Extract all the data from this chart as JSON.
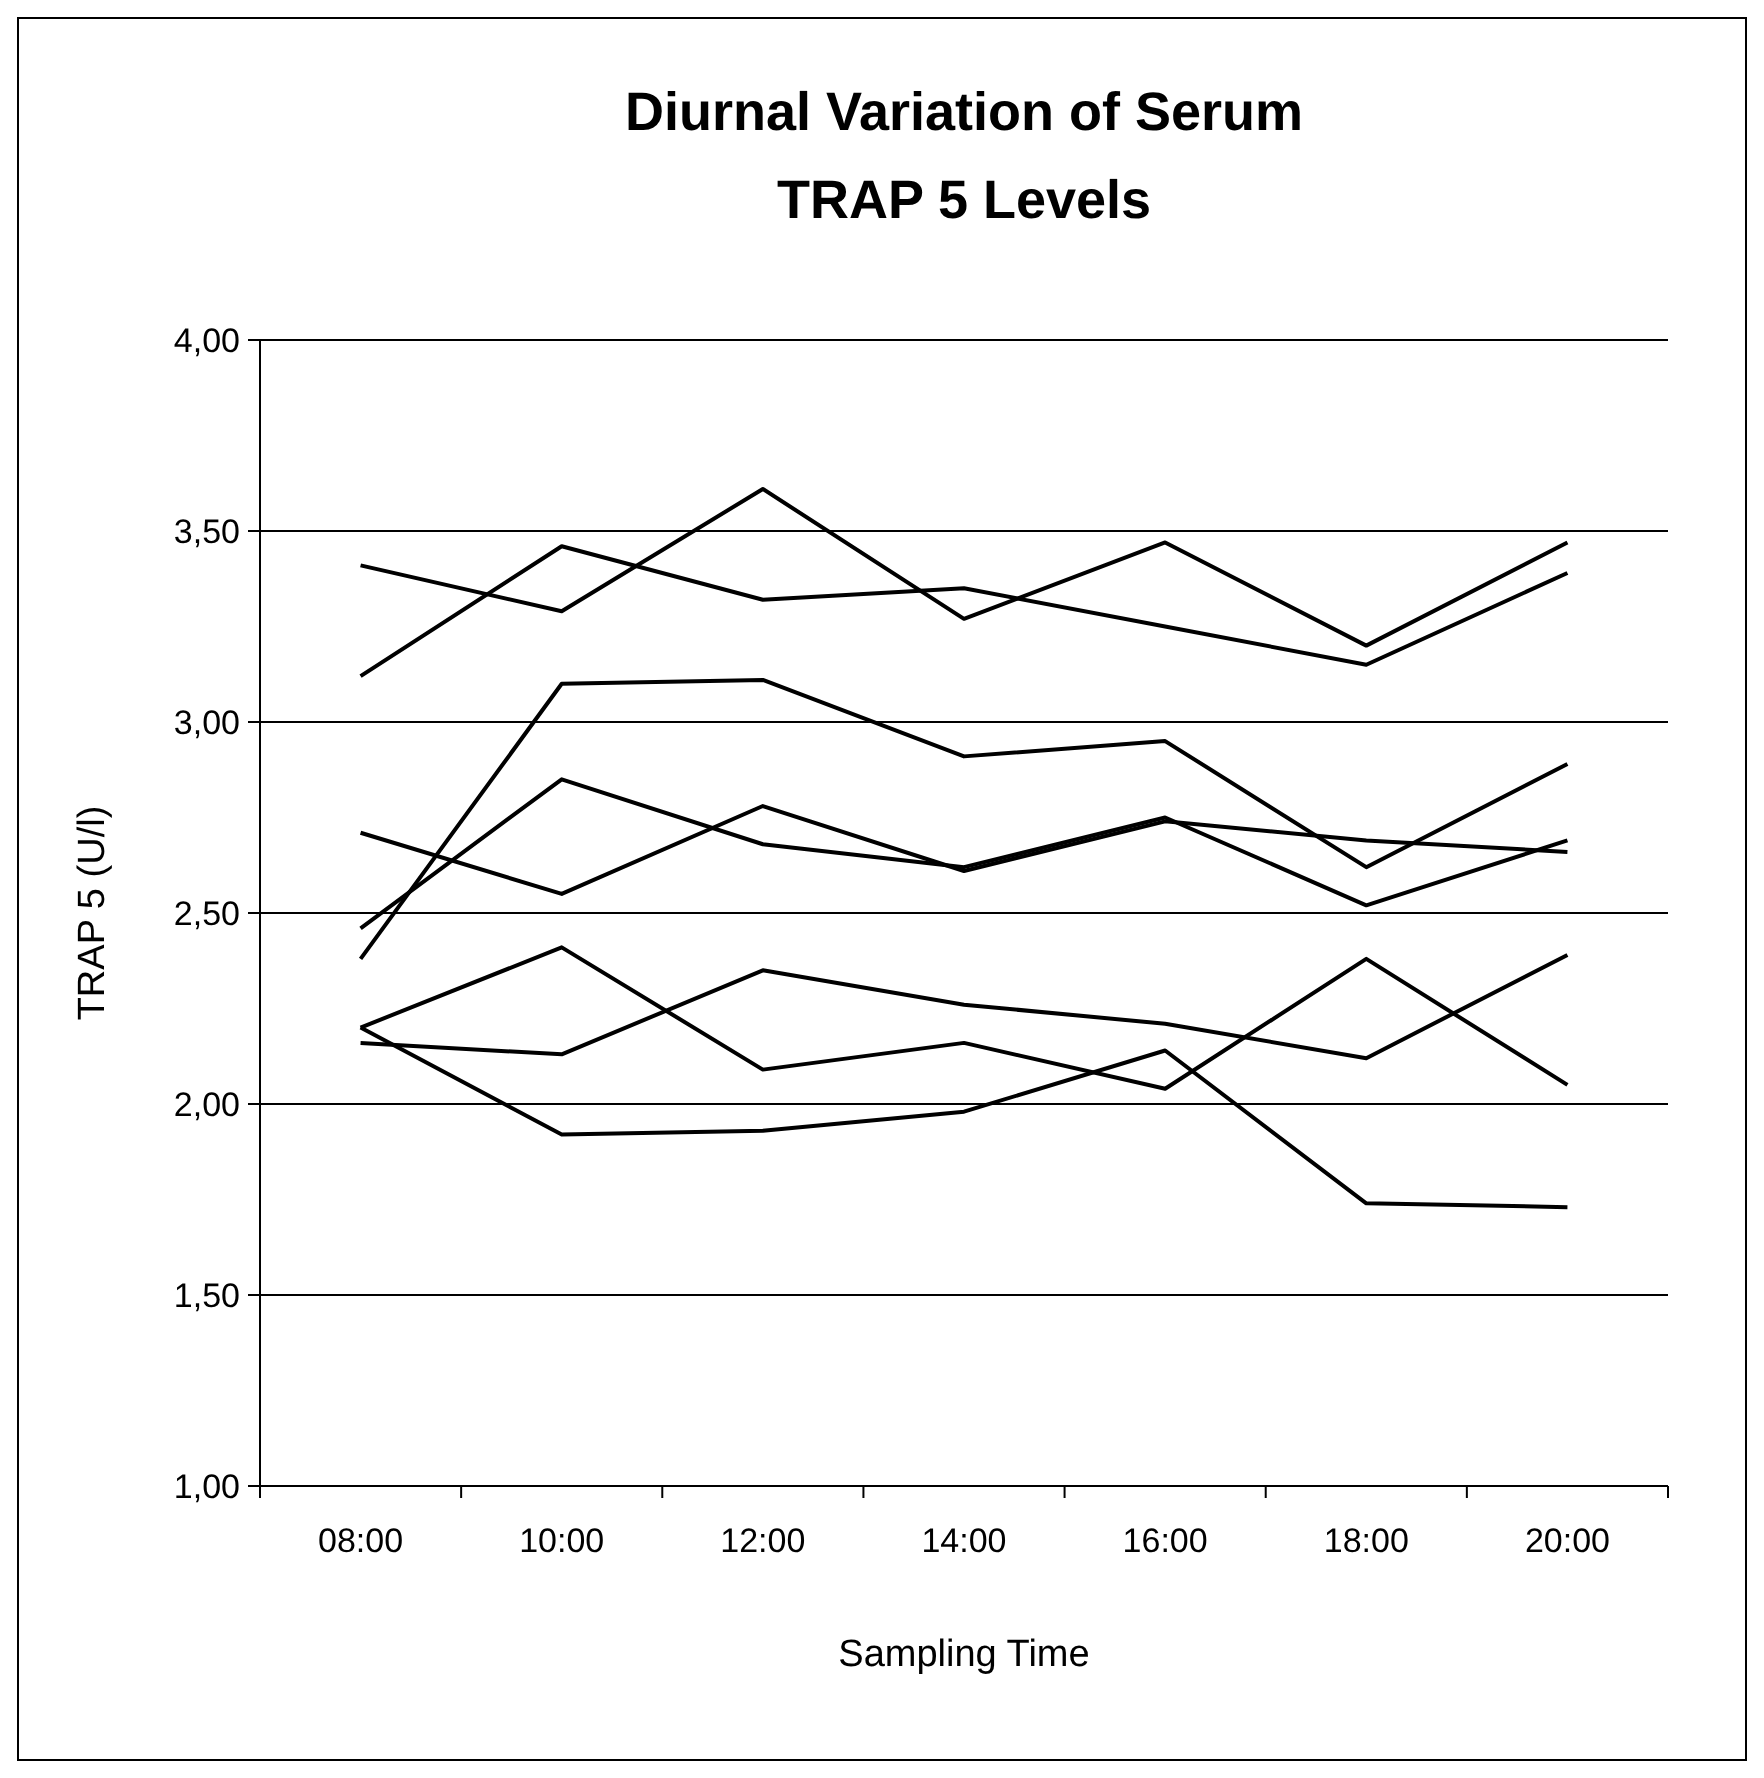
{
  "chart_data": {
    "type": "line",
    "title": "Diurnal Variation of Serum\nTRAP 5 Levels",
    "xlabel": "Sampling Time",
    "ylabel": "TRAP 5 (U/l)",
    "categories": [
      "08:00",
      "10:00",
      "12:00",
      "14:00",
      "16:00",
      "18:00",
      "20:00"
    ],
    "series": [
      {
        "color": "#000000",
        "values": [
          3.41,
          3.29,
          3.61,
          3.27,
          3.47,
          3.2,
          3.47
        ]
      },
      {
        "color": "#000000",
        "values": [
          3.12,
          3.46,
          3.32,
          3.35,
          3.25,
          3.15,
          3.39
        ]
      },
      {
        "color": "#000000",
        "values": [
          2.38,
          3.1,
          3.11,
          2.91,
          2.95,
          2.62,
          2.89
        ]
      },
      {
        "color": "#000000",
        "values": [
          2.46,
          2.85,
          2.68,
          2.62,
          2.75,
          2.52,
          2.69
        ]
      },
      {
        "color": "#000000",
        "values": [
          2.71,
          2.55,
          2.78,
          2.61,
          2.74,
          2.69,
          2.66
        ]
      },
      {
        "color": "#000000",
        "values": [
          2.2,
          2.41,
          2.09,
          2.16,
          2.04,
          2.38,
          2.05
        ]
      },
      {
        "color": "#000000",
        "values": [
          2.16,
          2.13,
          2.35,
          2.26,
          2.21,
          2.12,
          2.39
        ]
      },
      {
        "color": "#000000",
        "values": [
          2.2,
          1.92,
          1.93,
          1.98,
          2.14,
          1.74,
          1.73
        ]
      }
    ],
    "ylim": [
      1,
      4
    ],
    "yticks": [
      {
        "value": 1,
        "label": "1,00"
      },
      {
        "value": 1.5,
        "label": "1,50"
      },
      {
        "value": 2,
        "label": "2,00"
      },
      {
        "value": 2.5,
        "label": "2,50"
      },
      {
        "value": 3,
        "label": "3,00"
      },
      {
        "value": 3.5,
        "label": "3,50"
      },
      {
        "value": 4,
        "label": "4,00"
      }
    ],
    "grid": "y",
    "marker": "none",
    "line_style": "solid"
  }
}
